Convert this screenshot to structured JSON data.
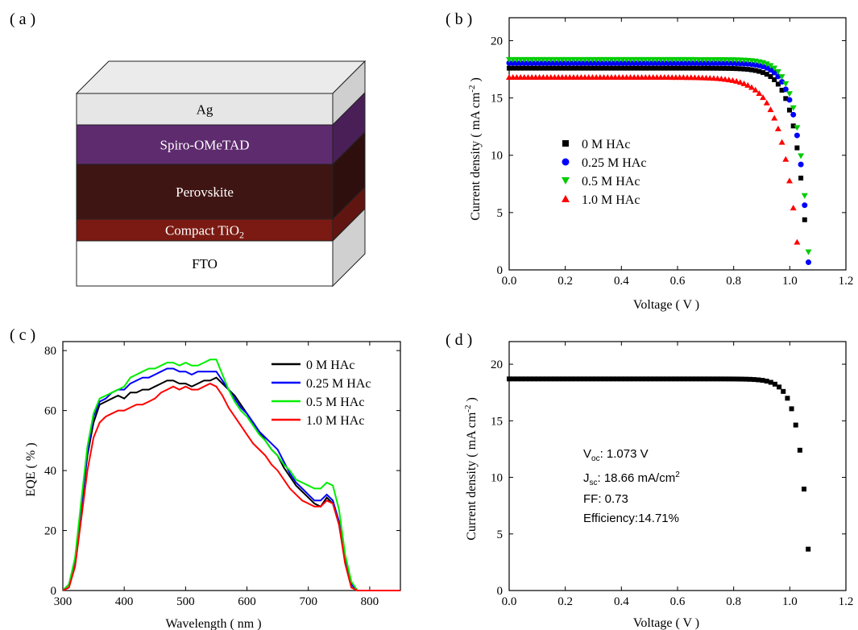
{
  "panels": {
    "a": {
      "label": "( a )"
    },
    "b": {
      "label": "( b )"
    },
    "c": {
      "label": "( c )"
    },
    "d": {
      "label": "( d )"
    }
  },
  "diagram_a": {
    "layers": [
      {
        "name": "Ag",
        "color": "#e6e6e6",
        "side": "#cfcfcf",
        "text_color": "#000000"
      },
      {
        "name": "Spiro-OMeTAD",
        "color": "#5e2b6e",
        "side": "#4a1f58",
        "text_color": "#ffffff"
      },
      {
        "name": "Perovskite",
        "color": "#3f1513",
        "side": "#2f0f0e",
        "text_color": "#ffffff"
      },
      {
        "name": "Compact TiO",
        "subscript": "2",
        "color": "#7a1a12",
        "side": "#611510",
        "text_color": "#ffffff"
      },
      {
        "name": "FTO",
        "color": "#ffffff",
        "side": "#d0d0d0",
        "text_color": "#000000"
      }
    ],
    "top_color": "#ebebeb"
  },
  "chart_data": [
    {
      "id": "b",
      "type": "scatter",
      "xlabel": "Voltage ( V )",
      "ylabel": "Current density ( mA  cm",
      "ylabel_sup": "-2",
      "ylabel_end": " )",
      "xlim": [
        0.0,
        1.2
      ],
      "ylim": [
        0,
        22
      ],
      "xticks": [
        "0.0",
        "0.2",
        "0.4",
        "0.6",
        "0.8",
        "1.0",
        "1.2"
      ],
      "yticks": [
        "0",
        "5",
        "10",
        "15",
        "20"
      ],
      "legend": "middle-left",
      "series": [
        {
          "name": "0 M HAc",
          "color": "#000000",
          "marker": "square",
          "jsc": 17.6,
          "voc": 1.065,
          "n": 0.042
        },
        {
          "name": "0.25 M HAc",
          "color": "#0000ff",
          "marker": "circle",
          "jsc": 18.05,
          "voc": 1.068,
          "n": 0.04
        },
        {
          "name": "0.5 M HAc",
          "color": "#00cc00",
          "marker": "triangle-down",
          "jsc": 18.35,
          "voc": 1.07,
          "n": 0.039
        },
        {
          "name": "1.0 M HAc",
          "color": "#ff0000",
          "marker": "triangle-up",
          "jsc": 16.8,
          "voc": 1.035,
          "n": 0.058
        }
      ]
    },
    {
      "id": "c",
      "type": "line",
      "xlabel": "Wavelength ( nm )",
      "ylabel": "EQE ( % )",
      "xlim": [
        300,
        850
      ],
      "ylim": [
        0,
        83
      ],
      "xticks": [
        "300",
        "400",
        "500",
        "600",
        "700",
        "800"
      ],
      "yticks": [
        "0",
        "20",
        "40",
        "60",
        "80"
      ],
      "legend": "top-right",
      "series": [
        {
          "name": "0 M HAc",
          "color": "#000000",
          "x": [
            300,
            310,
            320,
            330,
            340,
            350,
            360,
            370,
            380,
            390,
            400,
            410,
            420,
            430,
            440,
            450,
            460,
            470,
            480,
            490,
            500,
            510,
            520,
            530,
            540,
            550,
            560,
            570,
            580,
            590,
            600,
            610,
            620,
            630,
            640,
            650,
            660,
            670,
            680,
            690,
            700,
            710,
            720,
            730,
            740,
            750,
            760,
            770,
            780,
            790,
            800,
            850
          ],
          "y": [
            0,
            2,
            10,
            28,
            45,
            56,
            62,
            63,
            64,
            65,
            64,
            66,
            66,
            67,
            67,
            68,
            69,
            70,
            70,
            69,
            69,
            68,
            69,
            70,
            70,
            71,
            69,
            67,
            65,
            62,
            59,
            56,
            53,
            50,
            47,
            45,
            41,
            38,
            35,
            33,
            31,
            29,
            28,
            31,
            29,
            22,
            10,
            2,
            0,
            0,
            0,
            0
          ]
        },
        {
          "name": "0.25 M HAc",
          "color": "#0000ff",
          "x": [
            300,
            310,
            320,
            330,
            340,
            350,
            360,
            370,
            380,
            390,
            400,
            410,
            420,
            430,
            440,
            450,
            460,
            470,
            480,
            490,
            500,
            510,
            520,
            530,
            540,
            550,
            560,
            570,
            580,
            590,
            600,
            610,
            620,
            630,
            640,
            650,
            660,
            670,
            680,
            690,
            700,
            710,
            720,
            730,
            740,
            750,
            760,
            770,
            780,
            790,
            800,
            850
          ],
          "y": [
            0,
            2,
            10,
            28,
            46,
            58,
            63,
            64,
            66,
            67,
            67,
            69,
            70,
            71,
            71,
            72,
            73,
            74,
            74,
            73,
            73,
            72,
            73,
            73,
            73,
            73,
            70,
            67,
            64,
            61,
            59,
            56,
            53,
            51,
            49,
            47,
            43,
            39,
            36,
            34,
            32,
            30,
            30,
            32,
            30,
            23,
            10,
            2,
            0,
            0,
            0,
            0
          ]
        },
        {
          "name": "0.5 M HAc",
          "color": "#00ee00",
          "x": [
            300,
            310,
            320,
            330,
            340,
            350,
            360,
            370,
            380,
            390,
            400,
            410,
            420,
            430,
            440,
            450,
            460,
            470,
            480,
            490,
            500,
            510,
            520,
            530,
            540,
            550,
            560,
            570,
            580,
            590,
            600,
            610,
            620,
            630,
            640,
            650,
            660,
            670,
            680,
            690,
            700,
            710,
            720,
            730,
            740,
            750,
            760,
            770,
            780,
            790,
            800,
            850
          ],
          "y": [
            0,
            2,
            11,
            30,
            48,
            59,
            64,
            65,
            66,
            67,
            68,
            71,
            72,
            73,
            74,
            74,
            75,
            76,
            76,
            75,
            76,
            75,
            75,
            76,
            77,
            77,
            72,
            67,
            63,
            60,
            58,
            55,
            52,
            50,
            47,
            45,
            42,
            40,
            37,
            36,
            35,
            34,
            34,
            36,
            35,
            27,
            12,
            3,
            0,
            0,
            0,
            0
          ]
        },
        {
          "name": "1.0 M HAc",
          "color": "#ff0000",
          "x": [
            300,
            310,
            320,
            330,
            340,
            350,
            360,
            370,
            380,
            390,
            400,
            410,
            420,
            430,
            440,
            450,
            460,
            470,
            480,
            490,
            500,
            510,
            520,
            530,
            540,
            550,
            560,
            570,
            580,
            590,
            600,
            610,
            620,
            630,
            640,
            650,
            660,
            670,
            680,
            690,
            700,
            710,
            720,
            730,
            740,
            750,
            760,
            770,
            780,
            790,
            800,
            850
          ],
          "y": [
            0,
            1,
            8,
            24,
            40,
            51,
            56,
            58,
            59,
            60,
            60,
            61,
            62,
            62,
            63,
            64,
            66,
            67,
            68,
            67,
            68,
            67,
            67,
            68,
            69,
            68,
            65,
            61,
            58,
            55,
            52,
            49,
            47,
            45,
            42,
            40,
            37,
            34,
            32,
            30,
            29,
            28,
            28,
            30,
            29,
            22,
            9,
            1,
            0,
            0,
            0,
            0
          ]
        }
      ]
    },
    {
      "id": "d",
      "type": "scatter",
      "xlabel": "Voltage ( V )",
      "ylabel": "Current density ( mA  cm",
      "ylabel_sup": "-2",
      "ylabel_end": " )",
      "xlim": [
        0.0,
        1.2
      ],
      "ylim": [
        0,
        22
      ],
      "xticks": [
        "0.0",
        "0.2",
        "0.4",
        "0.6",
        "0.8",
        "1.0",
        "1.2"
      ],
      "yticks": [
        "0",
        "5",
        "10",
        "15",
        "20"
      ],
      "series": [
        {
          "name": "",
          "color": "#000000",
          "marker": "square",
          "jsc": 18.7,
          "voc": 1.073,
          "n": 0.034
        }
      ],
      "annotations": {
        "voc_label": "V",
        "voc_sub": "oc",
        "voc_value": ": 1.073 V",
        "jsc_label": "J",
        "jsc_sub": "sc",
        "jsc_value": ": 18.66 mA/cm",
        "jsc_sup": "2",
        "ff": "FF: 0.73",
        "efficiency": "Efficiency:14.71%"
      }
    }
  ]
}
